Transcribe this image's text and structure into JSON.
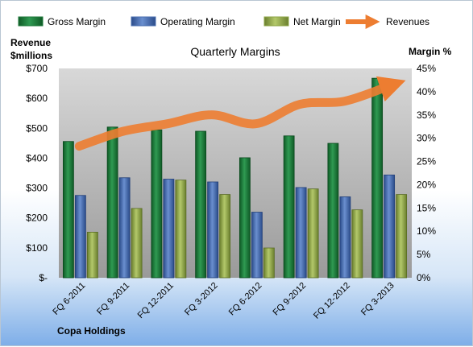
{
  "chart_data": {
    "type": "bar",
    "title": "Quarterly Margins",
    "company_label": "Copa Holdings",
    "left_axis_label_line1": "Revenue",
    "left_axis_label_line2": "$millions",
    "right_axis_label": "Margin %",
    "categories": [
      "FQ 6-2011",
      "FQ 9-2011",
      "FQ 12-2011",
      "FQ 3-2012",
      "FQ 6-2012",
      "FQ 9-2012",
      "FQ 12-2012",
      "FQ 3-2013"
    ],
    "left_ticks": [
      "$-",
      "$100",
      "$200",
      "$300",
      "$400",
      "$500",
      "$600",
      "$700"
    ],
    "right_ticks": [
      "0%",
      "5%",
      "10%",
      "15%",
      "20%",
      "25%",
      "30%",
      "35%",
      "40%",
      "45%"
    ],
    "ylim_left": [
      0,
      700
    ],
    "ylim_right": [
      0,
      45
    ],
    "grid": false,
    "legend_position": "top",
    "series": [
      {
        "name": "Gross Margin",
        "axis": "right",
        "color": "#1e7a3a",
        "values": [
          29.3,
          32.4,
          31.8,
          31.5,
          25.8,
          30.5,
          28.9,
          42.9
        ]
      },
      {
        "name": "Operating Margin",
        "axis": "right",
        "color": "#4a6fb0",
        "values": [
          17.7,
          21.5,
          21.2,
          20.6,
          14.1,
          19.4,
          17.4,
          22.1
        ]
      },
      {
        "name": "Net Margin",
        "axis": "right",
        "color": "#8ea546",
        "values": [
          9.8,
          14.9,
          21.0,
          17.9,
          6.4,
          19.1,
          14.6,
          17.9
        ]
      },
      {
        "name": "Revenues",
        "axis": "left",
        "type": "line",
        "color": "#ed7d31",
        "values": [
          440,
          490,
          515,
          545,
          515,
          580,
          590,
          640
        ]
      }
    ]
  }
}
